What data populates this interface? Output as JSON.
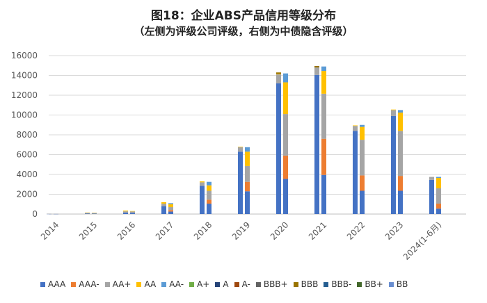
{
  "header": {
    "title": "图18：企业ABS产品信用等级分布",
    "subtitle": "（左侧为评级公司评级，右侧为中债隐含评级）"
  },
  "colors": {
    "AAA": "#4472c4",
    "AAA-": "#ed7d31",
    "AA+": "#a5a5a5",
    "AA": "#ffc000",
    "AA-": "#5b9bd5",
    "A+": "#70ad47",
    "A": "#264478",
    "A-": "#9e480e",
    "BBB+": "#636363",
    "BBB": "#997300",
    "BBB-": "#255e91",
    "BB+": "#43682b",
    "BB": "#698ed0"
  },
  "chart_data": {
    "type": "bar",
    "stacked": true,
    "ylim": [
      0,
      16000
    ],
    "yticks": [
      0,
      2000,
      4000,
      6000,
      8000,
      10000,
      12000,
      14000,
      16000
    ],
    "grid": true,
    "legend_position": "bottom",
    "categories": [
      "2014",
      "2015",
      "2016",
      "2017",
      "2018",
      "2019",
      "2020",
      "2021",
      "2022",
      "2023",
      "2024(1-6月)"
    ],
    "legend": [
      "AAA",
      "AAA-",
      "AA+",
      "AA",
      "AA-",
      "A+",
      "A",
      "A-",
      "BBB+",
      "BBB",
      "BBB-",
      "BB+",
      "BB"
    ],
    "bars": [
      {
        "category": "2014",
        "side": "left",
        "segments": {
          "AAA": 20,
          "AA+": 10
        }
      },
      {
        "category": "2014",
        "side": "right",
        "segments": {
          "AAA": 10,
          "AA+": 10
        }
      },
      {
        "category": "2015",
        "side": "left",
        "segments": {
          "AAA": 60,
          "AA+": 80,
          "AA": 10
        }
      },
      {
        "category": "2015",
        "side": "right",
        "segments": {
          "AAA": 50,
          "AA+": 60,
          "AA": 20
        }
      },
      {
        "category": "2016",
        "side": "left",
        "segments": {
          "AAA": 150,
          "AA+": 120,
          "AA": 80
        }
      },
      {
        "category": "2016",
        "side": "right",
        "segments": {
          "AAA": 120,
          "AA+": 140,
          "AA": 40
        }
      },
      {
        "category": "2017",
        "side": "left",
        "segments": {
          "AAA": 800,
          "AA+": 250,
          "AA": 150
        }
      },
      {
        "category": "2017",
        "side": "right",
        "segments": {
          "AAA": 250,
          "AAA-": 150,
          "AA+": 300,
          "AA": 300,
          "AA-": 100
        }
      },
      {
        "category": "2018",
        "side": "left",
        "segments": {
          "AAA": 2850,
          "AA+": 350,
          "AA": 100
        }
      },
      {
        "category": "2018",
        "side": "right",
        "segments": {
          "AAA": 1050,
          "AAA-": 400,
          "AA+": 900,
          "AA": 550,
          "AA-": 350
        }
      },
      {
        "category": "2019",
        "side": "left",
        "segments": {
          "AAA": 6300,
          "AA+": 450,
          "AA": 50
        }
      },
      {
        "category": "2019",
        "side": "right",
        "segments": {
          "AAA": 2300,
          "AAA-": 950,
          "AA+": 1600,
          "AA": 1450,
          "AA-": 450
        }
      },
      {
        "category": "2020",
        "side": "left",
        "segments": {
          "AAA": 13200,
          "AA+": 900,
          "AA": 50,
          "BBB": 150
        }
      },
      {
        "category": "2020",
        "side": "right",
        "segments": {
          "AAA": 3550,
          "AAA-": 2350,
          "AA+": 4200,
          "AA": 3200,
          "AA-": 900
        }
      },
      {
        "category": "2021",
        "side": "left",
        "segments": {
          "AAA": 14050,
          "AA+": 750,
          "BBB": 150
        }
      },
      {
        "category": "2021",
        "side": "right",
        "segments": {
          "AAA": 3950,
          "AAA-": 3650,
          "AA+": 4550,
          "AA": 2300,
          "AA-": 450
        }
      },
      {
        "category": "2022",
        "side": "left",
        "segments": {
          "AAA": 8400,
          "AA+": 500,
          "AA": 50
        }
      },
      {
        "category": "2022",
        "side": "right",
        "segments": {
          "AAA": 2350,
          "AAA-": 1550,
          "AA+": 3600,
          "AA": 1300,
          "AA-": 200
        }
      },
      {
        "category": "2023",
        "side": "left",
        "segments": {
          "AAA": 9900,
          "AA+": 600,
          "AA": 50
        }
      },
      {
        "category": "2023",
        "side": "right",
        "segments": {
          "AAA": 2350,
          "AAA-": 1500,
          "AA+": 4550,
          "AA": 1850,
          "AA-": 250
        }
      },
      {
        "category": "2024(1-6月)",
        "side": "left",
        "segments": {
          "AAA": 3450,
          "AA+": 300
        }
      },
      {
        "category": "2024(1-6月)",
        "side": "right",
        "segments": {
          "AAA": 550,
          "AAA-": 500,
          "AA+": 1550,
          "AA": 1050,
          "AA-": 100
        }
      }
    ]
  }
}
